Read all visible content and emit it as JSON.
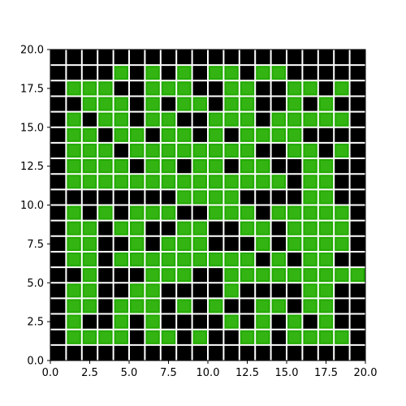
{
  "board": {
    "size": 20,
    "colors": {
      "alive": "#22aa00",
      "alive_highlight": "#44bb22",
      "dead": "#000000",
      "gridline": "#ffffff",
      "frame": "#000000"
    },
    "rows": [
      "00000000000000000000",
      "00001010101101100000",
      "01110011100110011010",
      "00111010110110010100",
      "01011011001110111110",
      "01101101101011110000",
      "01110111111110011010",
      "01111011011011001100",
      "01111111111111101100",
      "00000000111100001100",
      "01010111001110111110",
      "01101100110011011110",
      "01100101110001011110",
      "01101111111110101100",
      "00100011100111111111",
      "01100110000100001100",
      "01101110101001101100",
      "01001010000101010100",
      "01111011010011011110",
      "00000000000000000000"
    ]
  },
  "axes": {
    "xlim": [
      0,
      20
    ],
    "ylim": [
      0,
      20
    ],
    "x_ticks": [
      "0.0",
      "2.5",
      "5.0",
      "7.5",
      "10.0",
      "12.5",
      "15.0",
      "17.5",
      "20.0"
    ],
    "y_ticks": [
      "0.0",
      "2.5",
      "5.0",
      "7.5",
      "10.0",
      "12.5",
      "15.0",
      "17.5",
      "20.0"
    ]
  }
}
